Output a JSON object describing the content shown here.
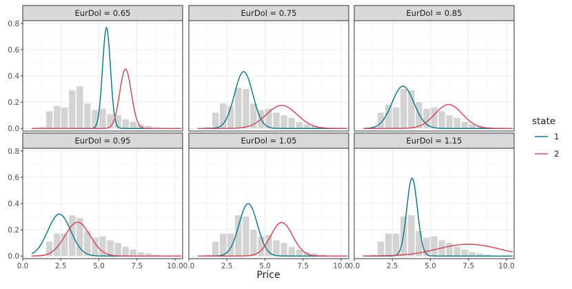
{
  "chart_data": {
    "type": "line",
    "xlabel": "Price",
    "ylabel": "",
    "xlim": [
      0,
      10.5
    ],
    "ylim": [
      -0.02,
      0.82
    ],
    "x_ticks": [
      0.0,
      2.5,
      5.0,
      7.5,
      10.0
    ],
    "x_tick_labels": [
      "0.0",
      "2.5",
      "5.0",
      "7.5",
      "10.0"
    ],
    "y_ticks": [
      0.0,
      0.2,
      0.4,
      0.6,
      0.8
    ],
    "y_tick_labels": [
      "0.0",
      "0.2",
      "0.4",
      "0.6",
      "0.8"
    ],
    "grid": true,
    "legend": {
      "title": "state",
      "placement": "right",
      "entries": [
        {
          "label": "1",
          "color": "#127b8a"
        },
        {
          "label": "2",
          "color": "#cc4b5c"
        }
      ]
    },
    "curve_x_range": [
      0.6,
      10.4
    ],
    "histogram": {
      "bin_edges": [
        0.5,
        1.0,
        1.5,
        2.0,
        2.5,
        3.0,
        3.5,
        4.0,
        4.5,
        5.0,
        5.5,
        6.0,
        6.5,
        7.0,
        7.5,
        8.0,
        8.5,
        9.0,
        9.5,
        10.0
      ],
      "color": "#d3d3d3"
    },
    "panels": [
      {
        "label": "EurDol = 0.65",
        "histogram": [
          0,
          0.01,
          0.13,
          0.17,
          0.16,
          0.29,
          0.32,
          0.19,
          0.14,
          0.15,
          0.11,
          0.1,
          0.07,
          0.05,
          0.03,
          0.02,
          0.01,
          0,
          0
        ],
        "series": [
          {
            "name": "1",
            "color": "#127b8a",
            "mean": 5.5,
            "sd": 0.26,
            "weight": 0.5
          },
          {
            "name": "2",
            "color": "#cc4b5c",
            "mean": 6.75,
            "sd": 0.38,
            "weight": 0.43
          }
        ]
      },
      {
        "label": "EurDol = 0.75",
        "histogram": [
          0,
          0.01,
          0.12,
          0.19,
          0.17,
          0.31,
          0.3,
          0.19,
          0.14,
          0.15,
          0.12,
          0.1,
          0.08,
          0.05,
          0.03,
          0.02,
          0.01,
          0,
          0
        ],
        "series": [
          {
            "name": "1",
            "color": "#127b8a",
            "mean": 3.6,
            "sd": 0.6,
            "weight": 0.65
          },
          {
            "name": "2",
            "color": "#cc4b5c",
            "mean": 6.1,
            "sd": 1.0,
            "weight": 0.44
          }
        ]
      },
      {
        "label": "EurDol = 0.85",
        "histogram": [
          0,
          0.01,
          0.12,
          0.18,
          0.16,
          0.3,
          0.29,
          0.2,
          0.15,
          0.16,
          0.13,
          0.1,
          0.08,
          0.05,
          0.03,
          0.02,
          0.01,
          0,
          0
        ],
        "series": [
          {
            "name": "1",
            "color": "#127b8a",
            "mean": 3.2,
            "sd": 0.72,
            "weight": 0.58
          },
          {
            "name": "2",
            "color": "#cc4b5c",
            "mean": 6.2,
            "sd": 0.9,
            "weight": 0.41
          }
        ]
      },
      {
        "label": "EurDol = 0.95",
        "histogram": [
          0,
          0.01,
          0.11,
          0.17,
          0.17,
          0.31,
          0.29,
          0.19,
          0.14,
          0.15,
          0.12,
          0.1,
          0.07,
          0.05,
          0.03,
          0.02,
          0.01,
          0,
          0
        ],
        "series": [
          {
            "name": "1",
            "color": "#127b8a",
            "mean": 2.4,
            "sd": 0.75,
            "weight": 0.6
          },
          {
            "name": "2",
            "color": "#cc4b5c",
            "mean": 3.6,
            "sd": 0.82,
            "weight": 0.53
          }
        ]
      },
      {
        "label": "EurDol = 1.05",
        "histogram": [
          0,
          0.01,
          0.11,
          0.17,
          0.17,
          0.31,
          0.3,
          0.2,
          0.15,
          0.16,
          0.12,
          0.1,
          0.07,
          0.05,
          0.03,
          0.02,
          0.01,
          0,
          0
        ],
        "series": [
          {
            "name": "1",
            "color": "#127b8a",
            "mean": 3.9,
            "sd": 0.6,
            "weight": 0.6
          },
          {
            "name": "2",
            "color": "#cc4b5c",
            "mean": 6.1,
            "sd": 0.72,
            "weight": 0.46
          }
        ]
      },
      {
        "label": "EurDol = 1.15",
        "histogram": [
          0,
          0.01,
          0.11,
          0.17,
          0.17,
          0.3,
          0.31,
          0.19,
          0.14,
          0.15,
          0.12,
          0.1,
          0.07,
          0.05,
          0.03,
          0.02,
          0.01,
          0,
          0
        ],
        "series": [
          {
            "name": "1",
            "color": "#127b8a",
            "mean": 3.8,
            "sd": 0.35,
            "weight": 0.52
          },
          {
            "name": "2",
            "color": "#cc4b5c",
            "mean": 7.5,
            "sd": 2.0,
            "weight": 0.45
          }
        ]
      }
    ]
  }
}
